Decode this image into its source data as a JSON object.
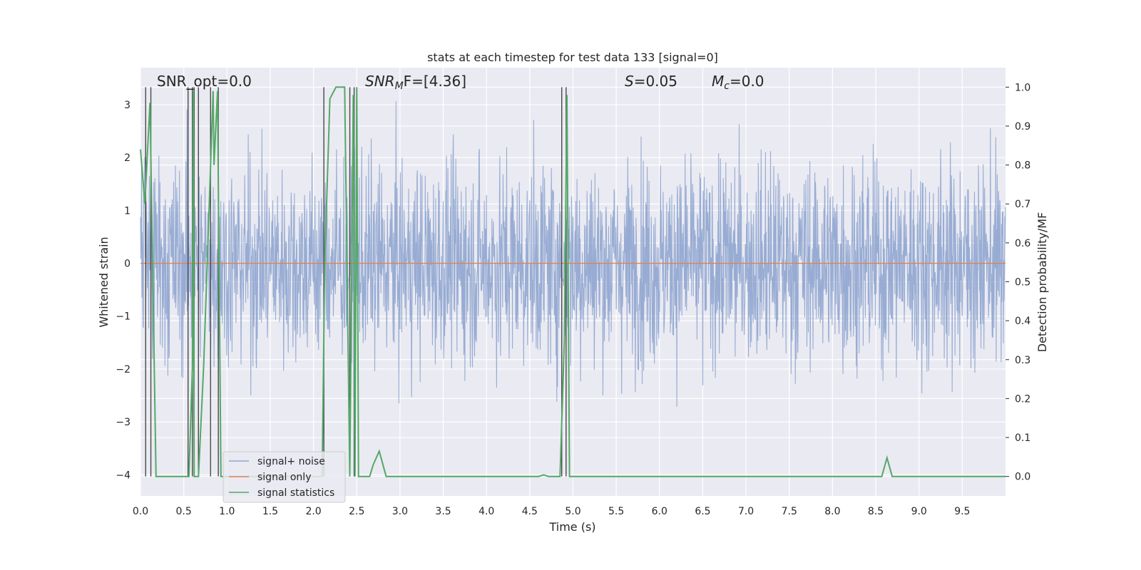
{
  "chart_data": {
    "type": "line",
    "title": "stats at each timestep for test data 133 [signal=0]",
    "xlabel": "Time (s)",
    "ylabel_left": "Whitened strain",
    "ylabel_right": "Detection probability/MF",
    "xlim": [
      0.0,
      10.0
    ],
    "ylim_left": [
      -4.4,
      3.7
    ],
    "ylim_right": [
      -0.05,
      1.05
    ],
    "x_ticks": [
      "0.0",
      "0.5",
      "1.0",
      "1.5",
      "2.0",
      "2.5",
      "3.0",
      "3.5",
      "4.0",
      "4.5",
      "5.0",
      "5.5",
      "6.0",
      "6.5",
      "7.0",
      "7.5",
      "8.0",
      "8.5",
      "9.0",
      "9.5"
    ],
    "y_ticks_left": [
      "3",
      "2",
      "1",
      "0",
      "−1",
      "−2",
      "−3",
      "−4"
    ],
    "y_ticks_right": [
      "1.0",
      "0.9",
      "0.8",
      "0.7",
      "0.6",
      "0.5",
      "0.4",
      "0.3",
      "0.2",
      "0.1",
      "0.0"
    ],
    "grid": true,
    "legend_position": "lower-left",
    "annotations": {
      "snr_opt": "SNR_opt=0.0",
      "snr_mf_prefix": "SNR",
      "snr_mf_sub": "M",
      "snr_mf_suffix": "F=[4.36]",
      "s_prefix": "S",
      "s_suffix": "=0.05",
      "mc_prefix": "M",
      "mc_sub": "c",
      "mc_suffix": "=0.0"
    },
    "series": [
      {
        "name": "signal+ noise",
        "color": "#8fa5cf",
        "style": "noise",
        "approx_range": [
          -4.05,
          3.4
        ]
      },
      {
        "name": "signal only",
        "color": "#dd8452",
        "values_constant": 0.0
      },
      {
        "name": "signal statistics",
        "color": "#55a868",
        "axis": "right",
        "x": [
          0.0,
          0.05,
          0.11,
          0.18,
          0.56,
          0.6,
          0.61,
          0.62,
          0.67,
          0.73,
          0.84,
          0.85,
          0.89,
          0.93,
          2.1,
          2.13,
          2.19,
          2.26,
          2.36,
          2.42,
          2.46,
          2.48,
          2.5,
          2.52,
          2.57,
          2.65,
          2.69,
          2.76,
          2.84,
          4.6,
          4.66,
          4.72,
          4.85,
          4.9,
          4.93,
          4.96,
          5.0,
          8.57,
          8.63,
          8.69,
          10.0
        ],
        "y": [
          0.84,
          0.7,
          0.96,
          0.0,
          0.0,
          0.28,
          0.99,
          0.0,
          0.0,
          0.28,
          0.99,
          0.8,
          0.99,
          0.0,
          0.0,
          0.55,
          0.97,
          1.0,
          1.0,
          0.0,
          0.98,
          0.0,
          1.0,
          0.0,
          0.0,
          0.0,
          0.03,
          0.065,
          0.0,
          0.0,
          0.004,
          0.0,
          0.0,
          0.35,
          0.98,
          0.0,
          0.0,
          0.0,
          0.048,
          0.0,
          0.0
        ]
      }
    ],
    "vertical_markers_x": [
      0.06,
      0.12,
      0.55,
      0.6,
      0.62,
      0.67,
      0.81,
      0.9,
      2.12,
      2.42,
      2.47,
      4.87,
      4.92
    ]
  }
}
